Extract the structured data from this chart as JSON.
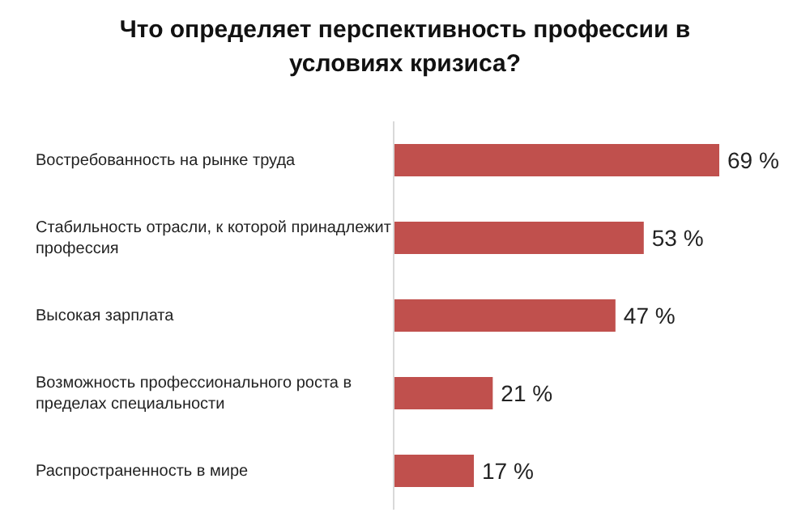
{
  "chart_data": {
    "type": "bar",
    "orientation": "horizontal",
    "title": "Что определяет перспективность профессии в условиях кризиса?",
    "categories": [
      "Востребованность на рынке труда",
      "Стабильность отрасли, к которой принадлежит профессия",
      "Высокая зарплата",
      "Возможность профессионального роста в пределах специальности",
      "Распространенность в мире"
    ],
    "values": [
      69,
      53,
      47,
      21,
      17
    ],
    "color": "#c0504d",
    "value_labels": [
      "69 %",
      "53 %",
      "47 %",
      "21 %",
      "17 %"
    ]
  }
}
